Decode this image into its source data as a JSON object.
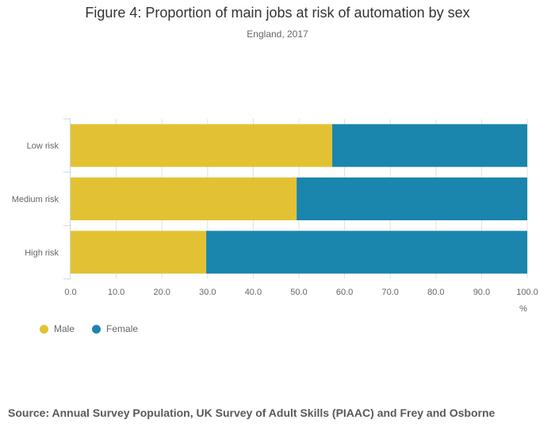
{
  "chart_data": {
    "type": "bar",
    "orientation": "horizontal",
    "stacked": true,
    "title": "Figure 4: Proportion of main jobs at risk of automation by sex",
    "subtitle": "England, 2017",
    "categories": [
      "Low risk",
      "Medium risk",
      "High risk"
    ],
    "series": [
      {
        "name": "Male",
        "color": "#e2c233",
        "values": [
          57.3,
          49.5,
          29.7
        ]
      },
      {
        "name": "Female",
        "color": "#1a85ad",
        "values": [
          42.7,
          50.5,
          70.3
        ]
      }
    ],
    "xlabel": "%",
    "xlim": [
      0,
      100
    ],
    "xticks": [
      "0.0",
      "10.0",
      "20.0",
      "30.0",
      "40.0",
      "50.0",
      "60.0",
      "70.0",
      "80.0",
      "90.0",
      "100.0"
    ],
    "grid": true,
    "legend": "bottom-left",
    "source": "Source: Annual Survey Population, UK Survey of Adult Skills (PIAAC) and Frey and Osborne"
  }
}
